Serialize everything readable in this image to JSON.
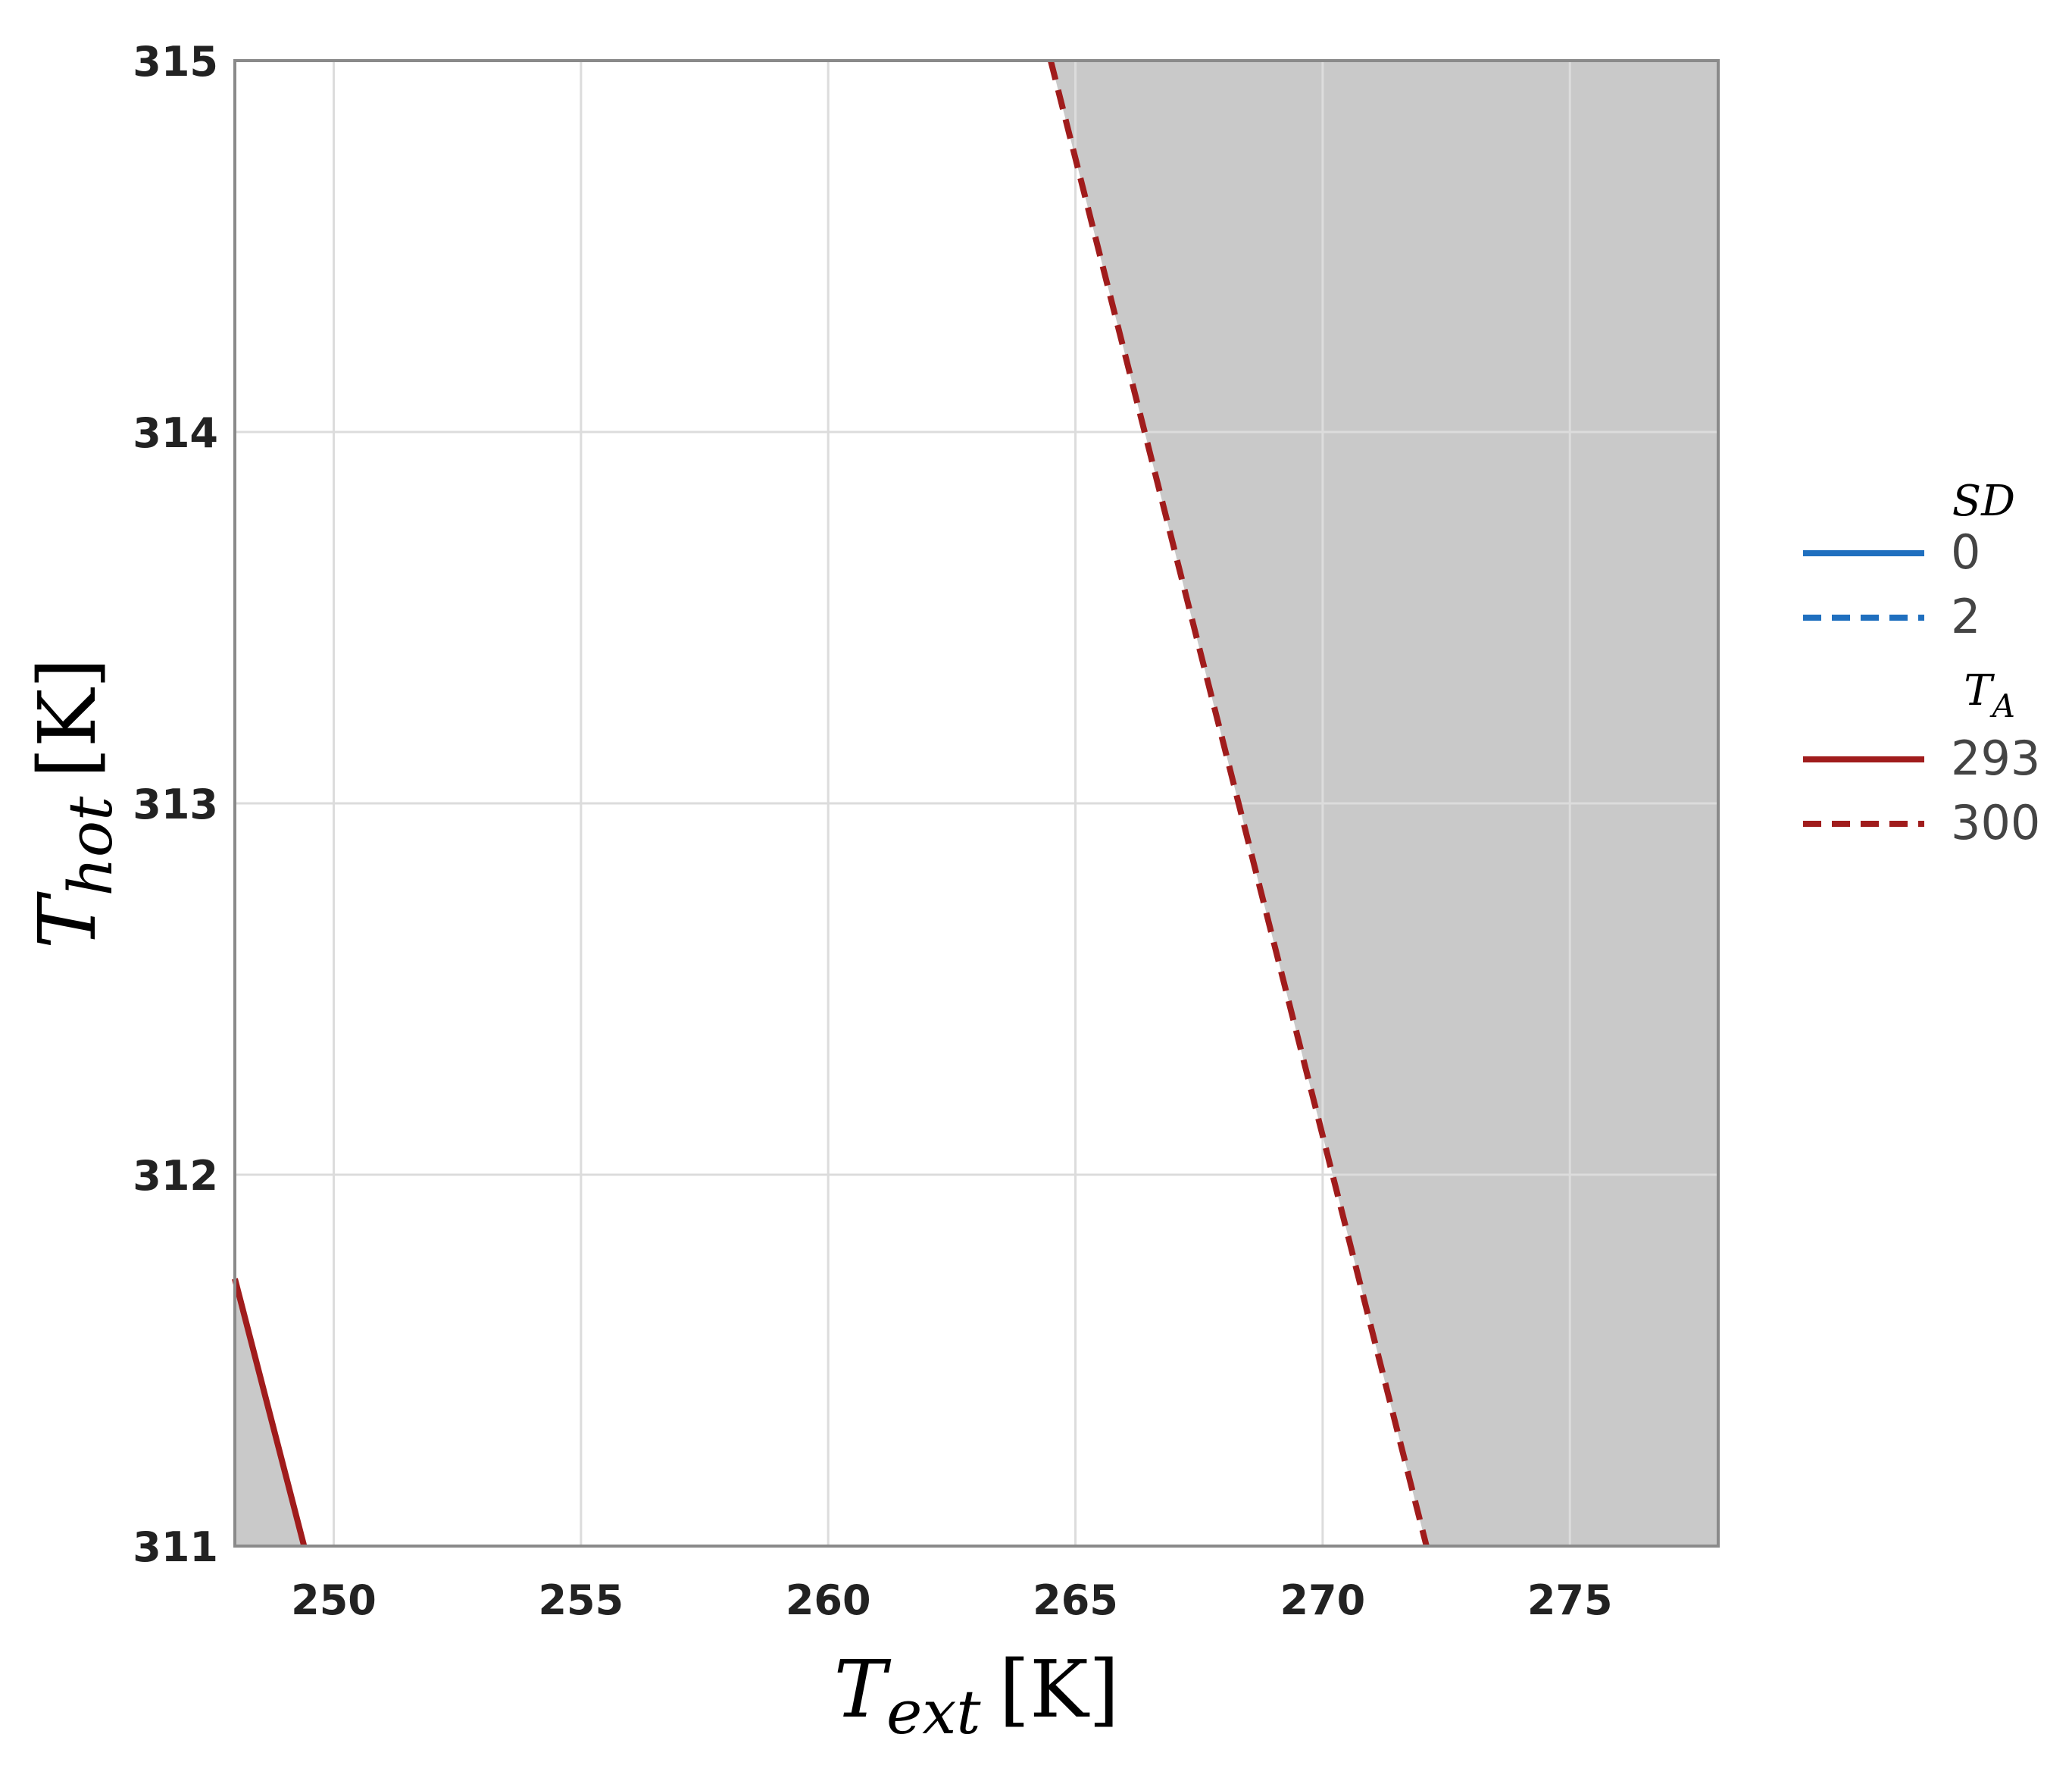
{
  "chart_data": {
    "type": "line",
    "xlabel": {
      "symbol": "T",
      "subscript": "ext",
      "unit": "[K]"
    },
    "ylabel": {
      "symbol": "T",
      "subscript": "hot",
      "unit": "[K]"
    },
    "xlim": [
      248,
      278
    ],
    "ylim": [
      311,
      315
    ],
    "x_ticks": [
      "250",
      "255",
      "260",
      "265",
      "270",
      "275"
    ],
    "y_ticks": [
      "311",
      "312",
      "313",
      "314",
      "315"
    ],
    "grid": true,
    "legend_position": "right",
    "legend": {
      "groups": [
        {
          "title": "SD",
          "title_subscript": "",
          "entries": [
            {
              "label": "0",
              "color": "#1f6fbf",
              "dash": "solid"
            },
            {
              "label": "2",
              "color": "#1f6fbf",
              "dash": "dashed"
            }
          ]
        },
        {
          "title": "T",
          "title_subscript": "A",
          "entries": [
            {
              "label": "293",
              "color": "#a01c1c",
              "dash": "solid"
            },
            {
              "label": "300",
              "color": "#a01c1c",
              "dash": "dashed"
            }
          ]
        }
      ]
    },
    "series": [
      {
        "SD": "0",
        "T_A": "293",
        "color": "#a01c1c",
        "dash": "solid",
        "x": [
          248.0,
          249.4
        ],
        "y": [
          311.72,
          311.0
        ]
      },
      {
        "SD": "0",
        "T_A": "300",
        "color": "#a01c1c",
        "dash": "dashed",
        "x": [
          264.5,
          272.1
        ],
        "y": [
          315.0,
          311.0
        ]
      }
    ],
    "shaded_regions": [
      {
        "color": "#c9c9c9",
        "x": [
          248.0,
          248.0,
          249.4
        ],
        "y": [
          311.0,
          311.72,
          311.0
        ]
      },
      {
        "color": "#c9c9c9",
        "x": [
          264.5,
          278.0,
          278.0,
          272.1
        ],
        "y": [
          315.0,
          315.0,
          311.0,
          311.0
        ]
      }
    ]
  }
}
